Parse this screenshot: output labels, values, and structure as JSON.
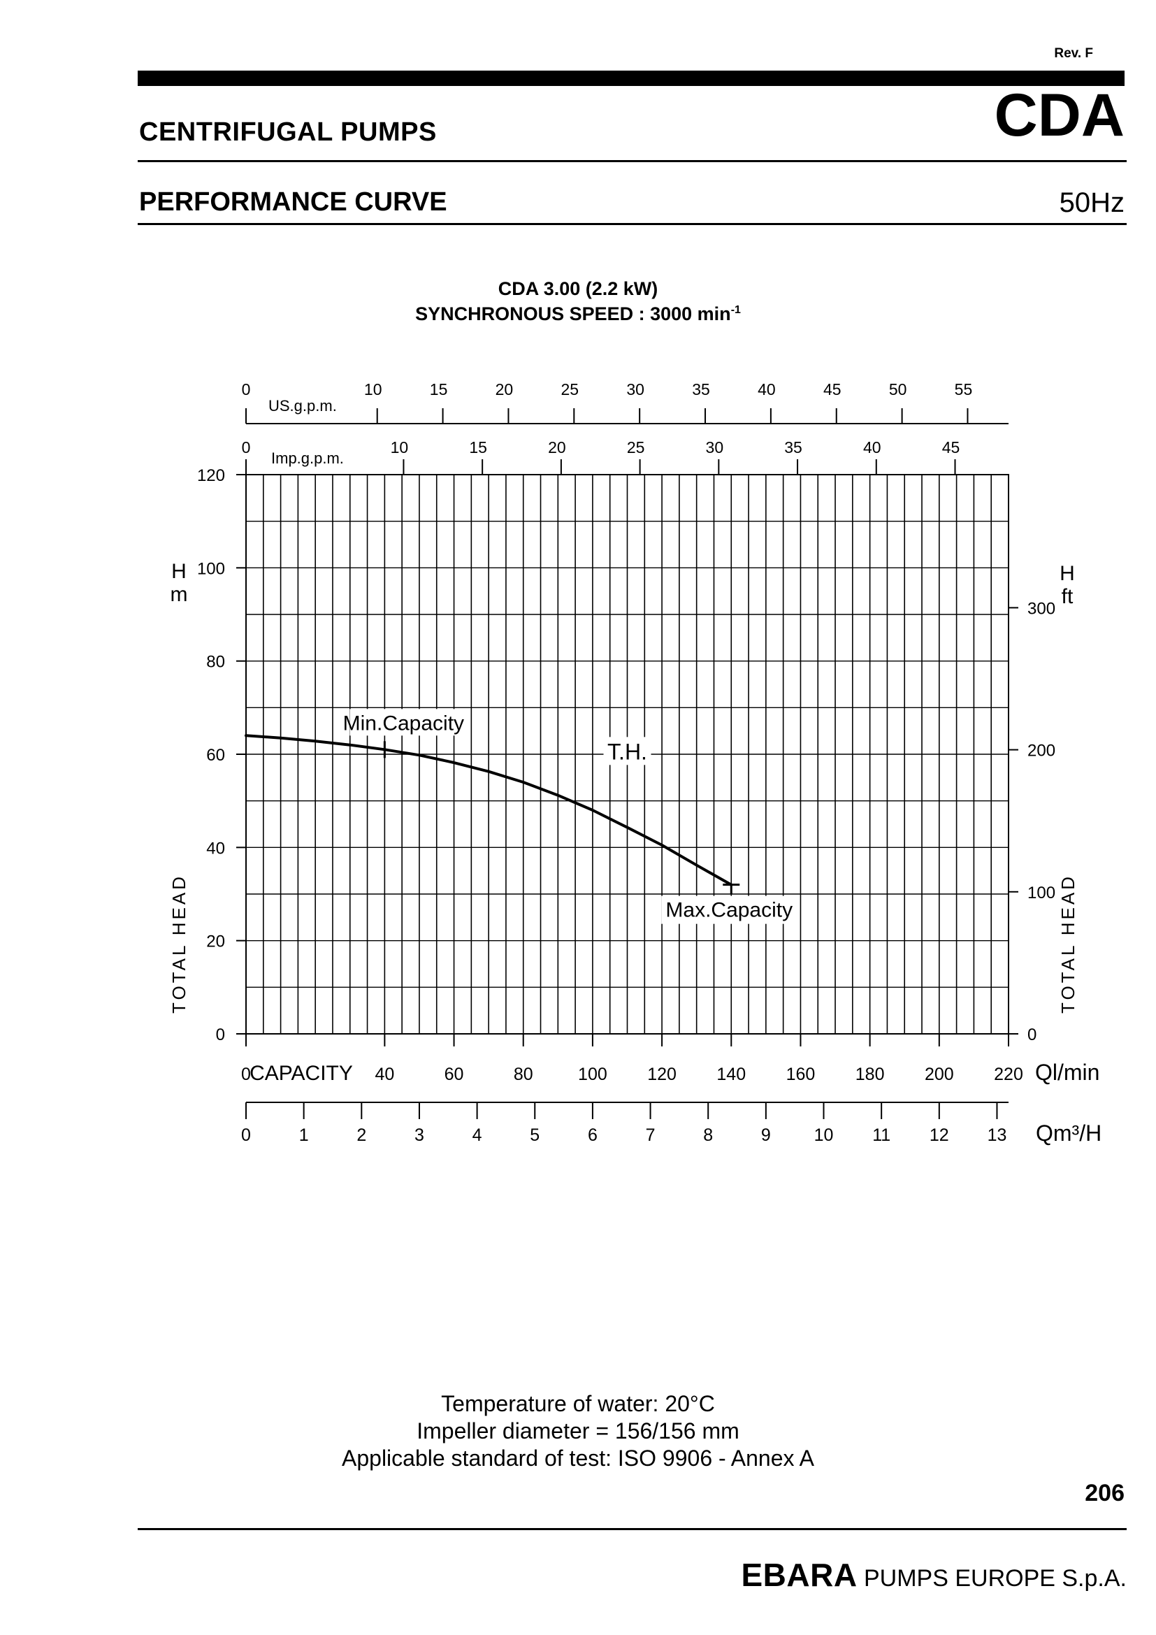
{
  "header": {
    "revision": "Rev. F",
    "category": "CENTRIFUGAL PUMPS",
    "model": "CDA",
    "section": "PERFORMANCE CURVE",
    "frequency": "50Hz"
  },
  "chart_title": {
    "line1": "CDA 3.00 (2.2 kW)",
    "line2": "SYNCHRONOUS SPEED : 3000 min",
    "line2_sup": "-1"
  },
  "chart_data": {
    "type": "line",
    "series": [
      {
        "name": "T.H.",
        "x": [
          0,
          10,
          20,
          30,
          40,
          50,
          60,
          70,
          80,
          90,
          100,
          110,
          120,
          130,
          140
        ],
        "y": [
          64,
          63.5,
          62.8,
          62,
          61,
          59.8,
          58.2,
          56.3,
          54,
          51.2,
          48,
          44.3,
          40.5,
          36.2,
          32
        ]
      }
    ],
    "annotations": [
      {
        "text": "Min.Capacity",
        "x": 40,
        "y": 61
      },
      {
        "text": "Max.Capacity",
        "x": 140,
        "y": 32
      },
      {
        "text": "T.H.",
        "x": 110,
        "y": 61
      }
    ],
    "xlabel": "CAPACITY",
    "x_unit": "Ql/min",
    "xlim": [
      0,
      220
    ],
    "x_ticks": [
      0,
      40,
      60,
      80,
      100,
      120,
      140,
      160,
      180,
      200,
      220
    ],
    "ylabel_left": "TOTAL HEAD",
    "y_unit_left_top": "H",
    "y_unit_left_bottom": "m",
    "ylim": [
      0,
      120
    ],
    "y_ticks": [
      0,
      20,
      40,
      60,
      80,
      100,
      120
    ],
    "ylabel_right": "TOTAL HEAD",
    "y_unit_right_top": "H",
    "y_unit_right_bottom": "ft",
    "y_right_ticks": [
      0,
      100,
      200,
      300
    ],
    "m3h_label": "Qm³/H",
    "m3h_ticks": [
      0,
      1,
      2,
      3,
      4,
      5,
      6,
      7,
      8,
      9,
      10,
      11,
      12,
      13
    ],
    "usgpm_label": "US.g.p.m.",
    "usgpm_ticks": [
      0,
      10,
      15,
      20,
      25,
      30,
      35,
      40,
      45,
      50,
      55
    ],
    "impgpm_label": "Imp.g.p.m.",
    "impgpm_ticks": [
      0,
      10,
      15,
      20,
      25,
      30,
      35,
      40,
      45
    ],
    "grid": true
  },
  "footer": {
    "line1": "Temperature of water: 20°C",
    "line2": "Impeller diameter = 156/156 mm",
    "line3": "Applicable standard of test: ISO 9906 - Annex A",
    "page": "206",
    "brand_bold": "EBARA",
    "brand_rest": " PUMPS EUROPE S.p.A."
  }
}
